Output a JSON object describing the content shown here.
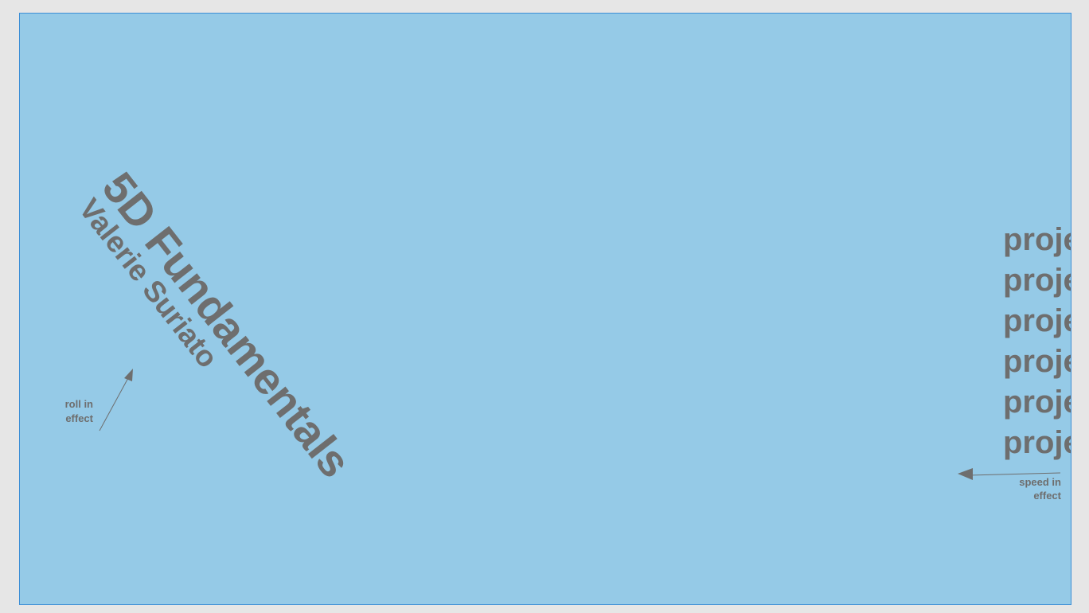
{
  "slide": {
    "background": "#95cae7",
    "border_color": "#3c8fd6",
    "text_color": "#6e6e6e",
    "title": "5D Fundamentals",
    "author": "Valerie Suriato",
    "annotations": {
      "roll_in": {
        "line1": "roll in",
        "line2": "effect"
      },
      "speed_in": {
        "line1": "speed in",
        "line2": "effect"
      }
    },
    "project_items": [
      "proje",
      "proje",
      "proje",
      "proje",
      "proje",
      "proje"
    ]
  }
}
